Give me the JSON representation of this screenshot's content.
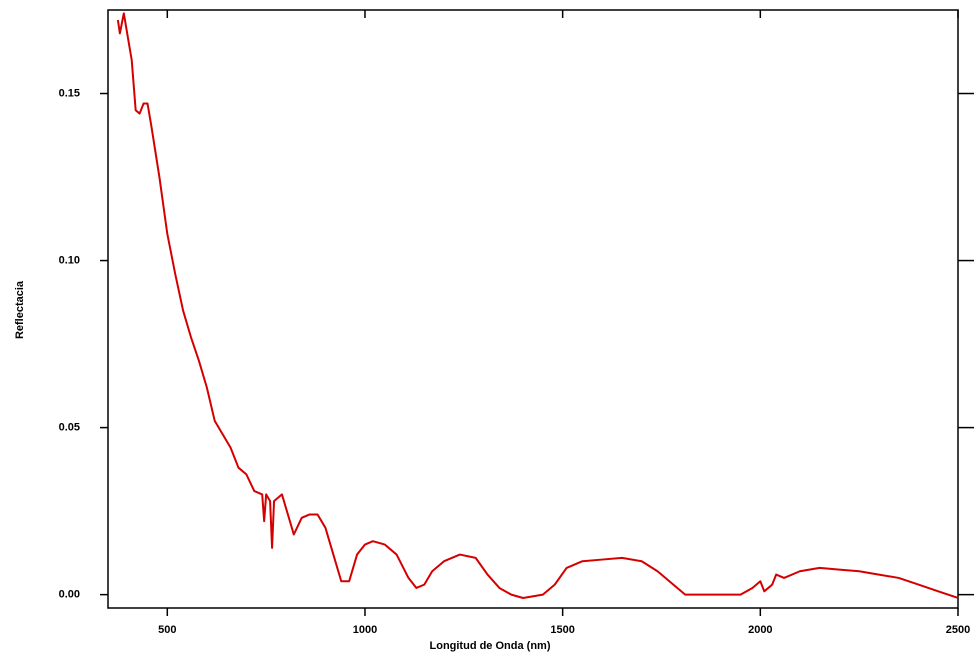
{
  "chart_data": {
    "type": "line",
    "x_label": "Longitud de Onda (nm)",
    "y_label": "Reflectacia",
    "xlim": [
      350,
      2500
    ],
    "ylim": [
      -0.004,
      0.175
    ],
    "xticks": [
      500,
      1000,
      1500,
      2000,
      2500
    ],
    "yticks": [
      {
        "value": 0,
        "label": "0.00"
      },
      0.05,
      {
        "value": 0.1,
        "label": "0.10"
      },
      0.15
    ],
    "x": [
      375,
      380,
      390,
      410,
      420,
      430,
      440,
      450,
      460,
      480,
      500,
      520,
      540,
      560,
      580,
      600,
      620,
      640,
      660,
      680,
      700,
      720,
      740,
      745,
      750,
      760,
      765,
      770,
      790,
      810,
      820,
      840,
      860,
      880,
      900,
      920,
      940,
      960,
      980,
      1000,
      1020,
      1050,
      1080,
      1110,
      1130,
      1150,
      1170,
      1200,
      1240,
      1280,
      1310,
      1340,
      1370,
      1400,
      1450,
      1480,
      1510,
      1550,
      1600,
      1650,
      1700,
      1740,
      1780,
      1810,
      1850,
      1900,
      1950,
      1980,
      2000,
      2010,
      2030,
      2040,
      2060,
      2100,
      2150,
      2200,
      2250,
      2300,
      2350,
      2400,
      2450,
      2500
    ],
    "series": [
      {
        "name": "Reflectancia",
        "color": "#d40000",
        "values": [
          0.172,
          0.168,
          0.174,
          0.16,
          0.145,
          0.144,
          0.147,
          0.147,
          0.14,
          0.125,
          0.108,
          0.096,
          0.085,
          0.077,
          0.07,
          0.062,
          0.052,
          0.048,
          0.044,
          0.038,
          0.036,
          0.031,
          0.03,
          0.022,
          0.03,
          0.028,
          0.014,
          0.028,
          0.03,
          0.022,
          0.018,
          0.023,
          0.024,
          0.024,
          0.02,
          0.012,
          0.004,
          0.004,
          0.012,
          0.015,
          0.016,
          0.015,
          0.012,
          0.005,
          0.002,
          0.003,
          0.007,
          0.01,
          0.012,
          0.011,
          0.006,
          0.002,
          0,
          -0.001,
          0,
          0.003,
          0.008,
          0.01,
          0.0105,
          0.011,
          0.01,
          0.007,
          0.003,
          0,
          0,
          0,
          0,
          0.002,
          0.004,
          0.001,
          0.003,
          0.006,
          0.005,
          0.007,
          0.008,
          0.0075,
          0.007,
          0.006,
          0.005,
          0.003,
          0.001,
          -0.001
        ]
      }
    ],
    "grid": false
  }
}
